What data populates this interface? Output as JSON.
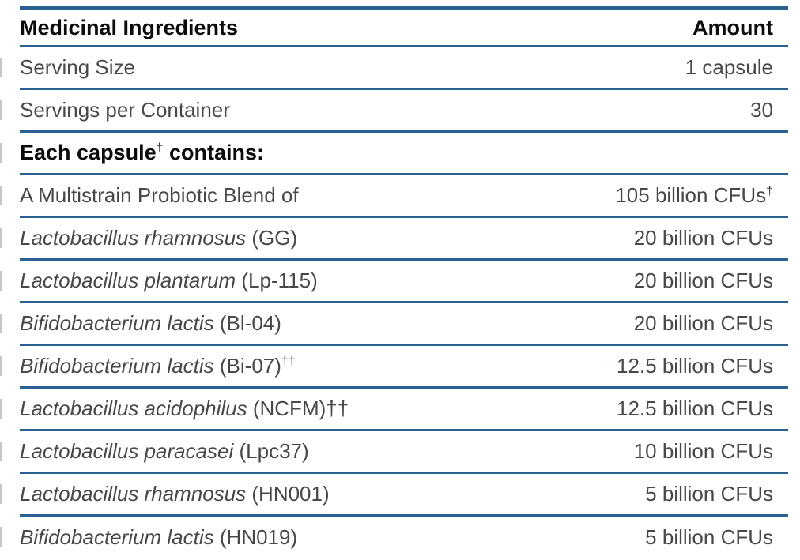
{
  "colors": {
    "rule_blue": "#2d6191",
    "header_text": "#0b0c0d",
    "body_text": "#46494c"
  },
  "header": {
    "ingredients_label": "Medicinal Ingredients",
    "amount_label": "Amount"
  },
  "rows": [
    {
      "label": "Serving Size",
      "amount": "1 capsule"
    },
    {
      "label": "Servings per Container",
      "amount": "30"
    },
    {
      "section_pre": "Each capsule",
      "section_sup": "†",
      "section_post": " contains:"
    },
    {
      "label": "A Multistrain Probiotic Blend of",
      "amount": "105 billion CFUs",
      "amount_sup": "†"
    },
    {
      "label_italic": "Lactobacillus rhamnosus",
      "label_rest": " (GG)",
      "amount": "20 billion CFUs"
    },
    {
      "label_italic": "Lactobacillus plantarum",
      "label_rest": " (Lp-115)",
      "amount": "20 billion CFUs"
    },
    {
      "label_italic": "Bifidobacterium lactis",
      "label_rest": " (Bl-04)",
      "amount": "20 billion CFUs"
    },
    {
      "label_italic": "Bifidobacterium lactis",
      "label_rest": " (Bi-07)",
      "label_sup": "††",
      "amount": "12.5 billion CFUs"
    },
    {
      "label_italic": "Lactobacillus acidophilus",
      "label_rest": " (NCFM)††",
      "amount": "12.5 billion CFUs"
    },
    {
      "label_italic": "Lactobacillus paracasei",
      "label_rest": " (Lpc37)",
      "amount": "10 billion CFUs"
    },
    {
      "label_italic": "Lactobacillus rhamnosus",
      "label_rest": " (HN001)",
      "amount": "5 billion CFUs"
    },
    {
      "label_italic": "Bifidobacterium lactis",
      "label_rest": " (HN019)",
      "amount": "5 billion CFUs"
    }
  ]
}
